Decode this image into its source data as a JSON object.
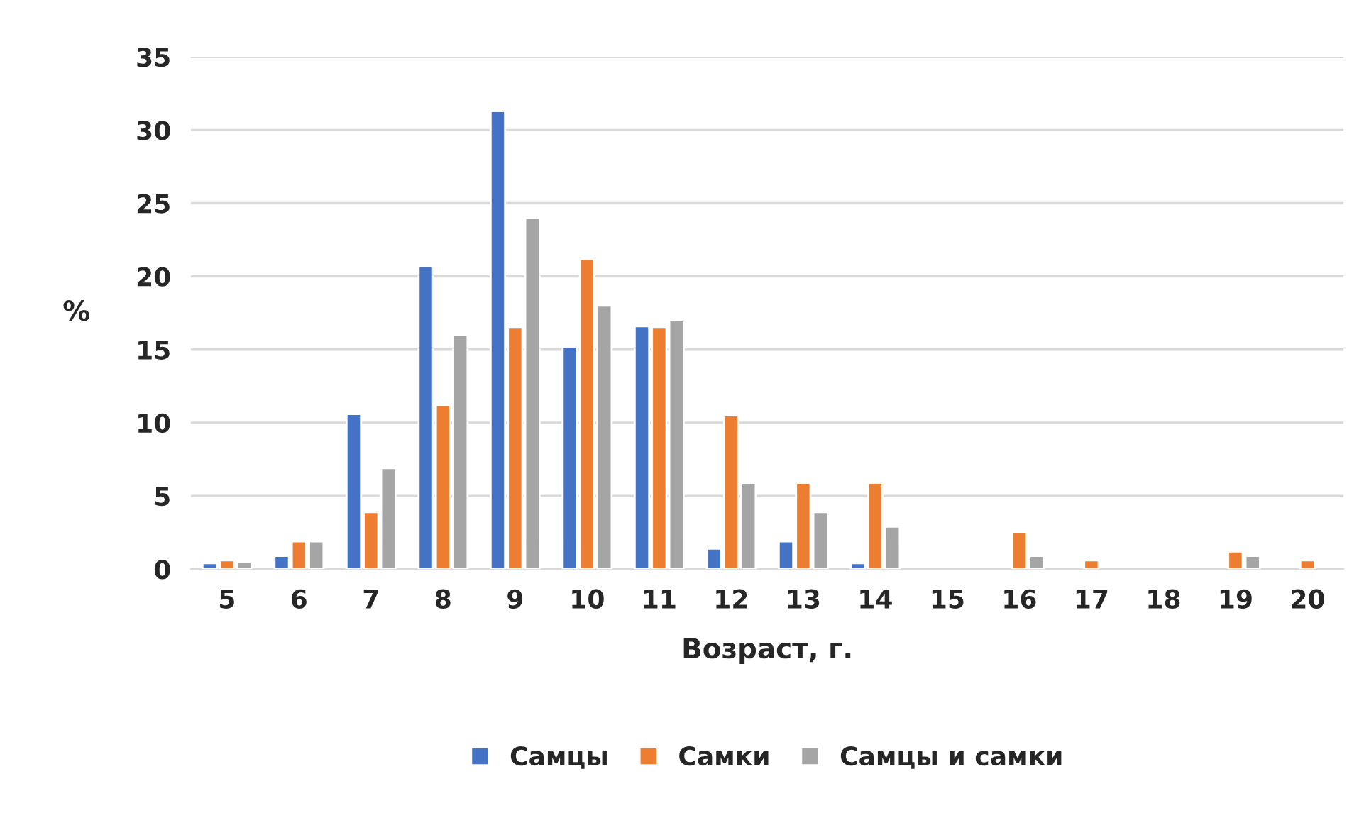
{
  "chart_data": {
    "type": "bar",
    "xlabel": "Возраст, г.",
    "ylabel": "%",
    "categories": [
      "5",
      "6",
      "7",
      "8",
      "9",
      "10",
      "11",
      "12",
      "13",
      "14",
      "15",
      "16",
      "17",
      "18",
      "19",
      "20"
    ],
    "series": [
      {
        "name": "Самцы",
        "color": "#4472c4",
        "values": [
          0.4,
          0.9,
          10.6,
          20.7,
          31.3,
          15.2,
          16.6,
          1.4,
          1.9,
          0.4,
          null,
          null,
          null,
          null,
          null,
          null
        ]
      },
      {
        "name": "Самки",
        "color": "#ed7d31",
        "values": [
          0.6,
          1.9,
          3.9,
          11.2,
          16.5,
          21.2,
          16.5,
          10.5,
          5.9,
          5.9,
          null,
          2.5,
          0.6,
          null,
          1.2,
          0.6
        ]
      },
      {
        "name": "Самцы и самки",
        "color": "#a5a5a5",
        "values": [
          0.5,
          1.9,
          6.9,
          16,
          24,
          18,
          17,
          5.9,
          3.9,
          2.9,
          null,
          0.9,
          null,
          null,
          0.9,
          null
        ]
      }
    ],
    "ylim": [
      0,
      35
    ],
    "yticks": [
      0,
      5,
      10,
      15,
      20,
      25,
      30,
      35
    ],
    "grid": "y",
    "legend": "bottom"
  }
}
